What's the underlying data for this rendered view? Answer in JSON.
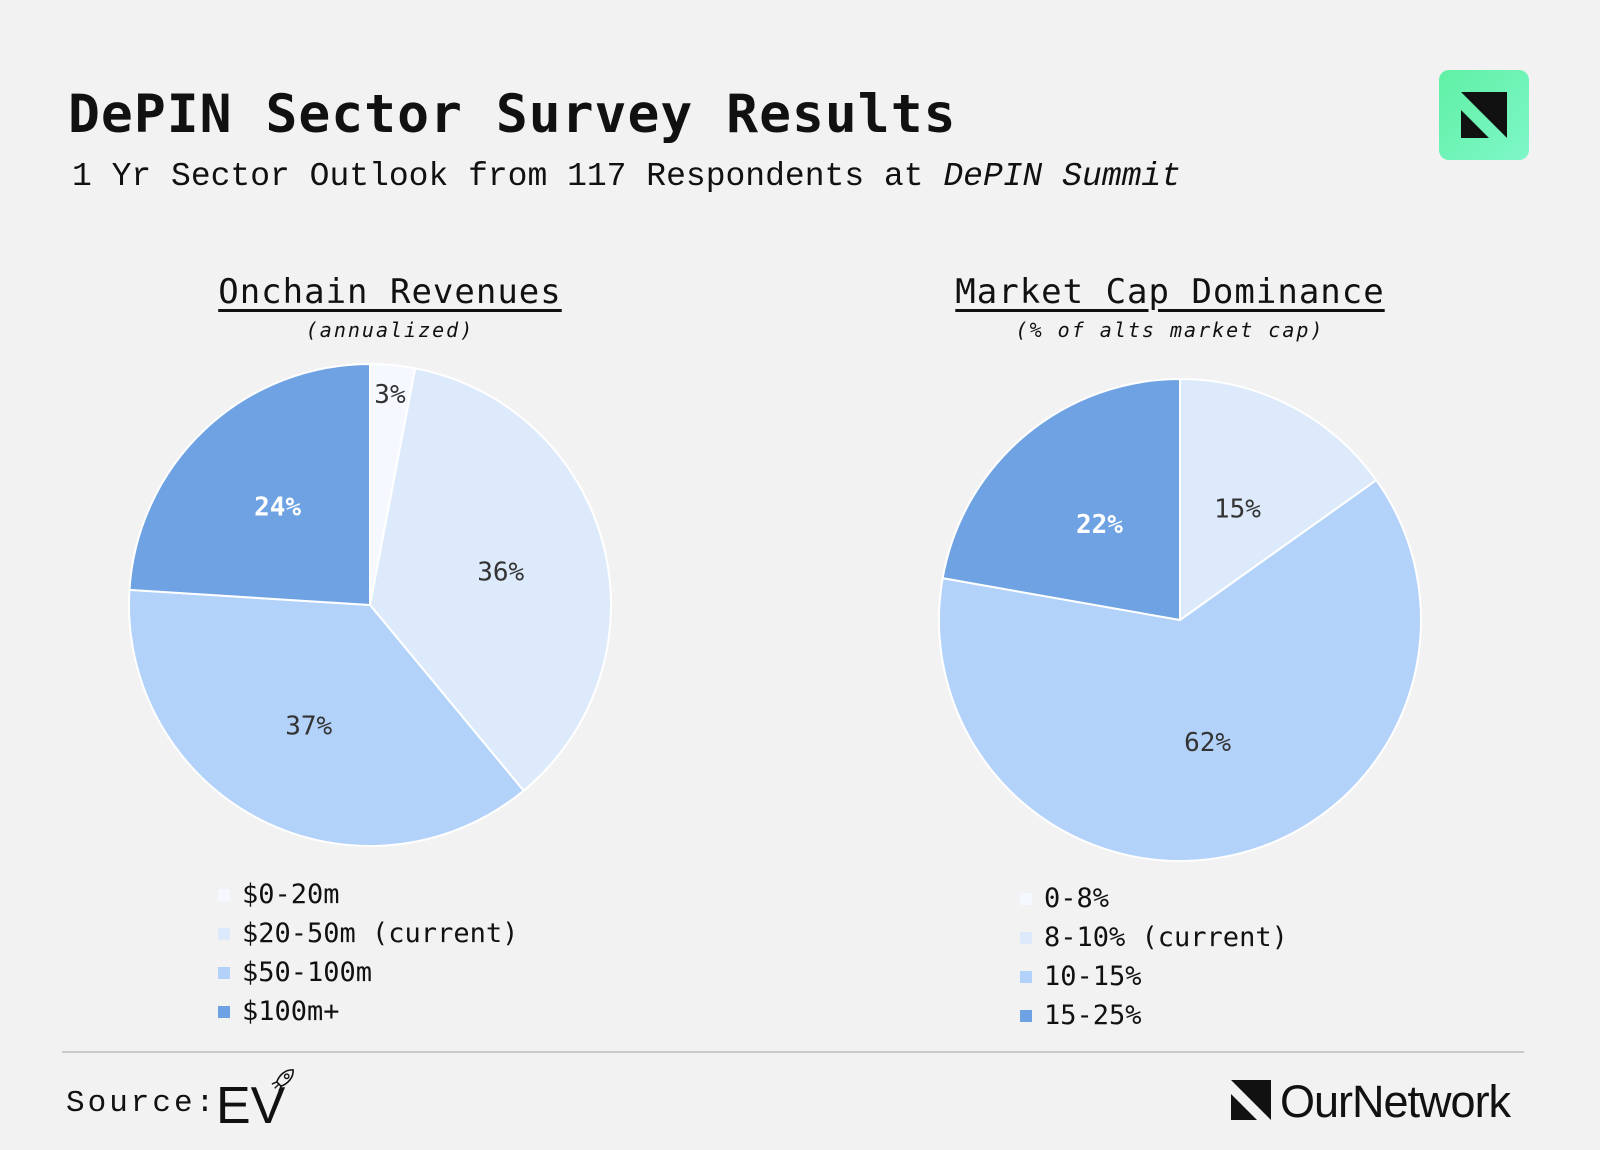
{
  "header": {
    "title": "DePIN Sector Survey Results",
    "subtitle_prefix": "1 Yr Sector Outlook from 117 Respondents at ",
    "subtitle_emphasis": "DePIN Summit"
  },
  "footer": {
    "source_label": "Source:",
    "source_logo_text": "EV",
    "brand_text": "OurNetwork"
  },
  "colors": {
    "background": "#f2f2f2",
    "badge_green": "#6ff3b6"
  },
  "chart_data": [
    {
      "type": "pie",
      "title": "Onchain Revenues",
      "subtitle": "(annualized)",
      "categories": [
        "$0-20m",
        "$20-50m (current)",
        "$50-100m",
        "$100m+"
      ],
      "values": [
        3,
        36,
        37,
        24
      ],
      "labels": [
        "3%",
        "36%",
        "37%",
        "24%"
      ],
      "colors": [
        "#f5f9ff",
        "#dceafb",
        "#b2d2fa",
        "#6ea2e2"
      ],
      "label_colors": [
        "#333333",
        "#333333",
        "#333333",
        "#ffffff"
      ],
      "legend_position": "bottom"
    },
    {
      "type": "pie",
      "title": "Market Cap Dominance",
      "subtitle": "(% of alts market cap)",
      "categories": [
        "0-8%",
        "8-10% (current)",
        "10-15%",
        "15-25%"
      ],
      "values": [
        0,
        15,
        62,
        22
      ],
      "labels": [
        "",
        "15%",
        "62%",
        "22%"
      ],
      "colors": [
        "#f5f9ff",
        "#dceafb",
        "#b2d2fa",
        "#6ea2e2"
      ],
      "label_colors": [
        "#333333",
        "#333333",
        "#333333",
        "#ffffff"
      ],
      "legend_position": "bottom"
    }
  ]
}
